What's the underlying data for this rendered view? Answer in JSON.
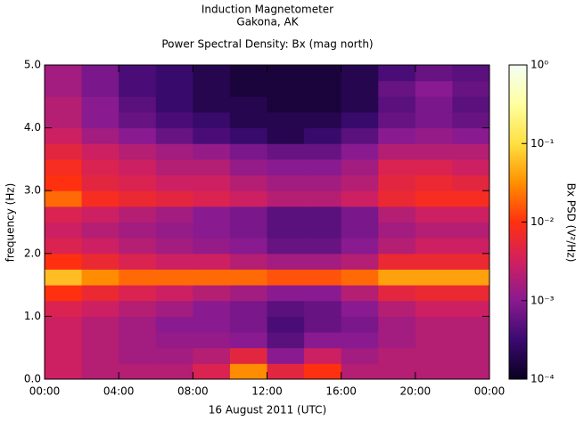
{
  "chart_data": {
    "type": "heatmap",
    "title": "Induction Magnetometer",
    "subtitle": "Gakona, AK",
    "plot_title": "Power Spectral Density: Bx (mag north)",
    "xlabel": "16 August 2011 (UTC)",
    "ylabel": "frequency (Hz)",
    "zlabel": "Bx PSD (V²/Hz)",
    "xlim": [
      0,
      24
    ],
    "xticks": [
      {
        "value": 0,
        "label": "00:00"
      },
      {
        "value": 4,
        "label": "04:00"
      },
      {
        "value": 8,
        "label": "08:00"
      },
      {
        "value": 12,
        "label": "12:00"
      },
      {
        "value": 16,
        "label": "16:00"
      },
      {
        "value": 20,
        "label": "20:00"
      },
      {
        "value": 24,
        "label": "00:00"
      }
    ],
    "ylim": [
      0,
      5
    ],
    "yticks": [
      {
        "value": 0,
        "label": "0.0"
      },
      {
        "value": 1,
        "label": "1.0"
      },
      {
        "value": 2,
        "label": "2.0"
      },
      {
        "value": 3,
        "label": "3.0"
      },
      {
        "value": 4,
        "label": "4.0"
      },
      {
        "value": 5,
        "label": "5.0"
      }
    ],
    "zlim": [
      0.0001,
      1
    ],
    "zscale": "log",
    "zticks": [
      {
        "value": 0.0001,
        "label": "10⁻⁴"
      },
      {
        "value": 0.001,
        "label": "10⁻³"
      },
      {
        "value": 0.01,
        "label": "10⁻²"
      },
      {
        "value": 0.1,
        "label": "10⁻¹"
      },
      {
        "value": 1,
        "label": "10⁰"
      }
    ],
    "colormap": [
      "#0a0020",
      "#3a0a70",
      "#8a1a90",
      "#d02060",
      "#ff3010",
      "#ff9000",
      "#ffe040",
      "#ffffa0",
      "#f4fff4"
    ],
    "x": [
      1,
      3,
      5,
      7,
      9,
      11,
      13,
      15,
      17,
      19,
      21,
      23
    ],
    "y": [
      0.125,
      0.375,
      0.625,
      0.875,
      1.125,
      1.375,
      1.625,
      1.875,
      2.125,
      2.375,
      2.625,
      2.875,
      3.125,
      3.375,
      3.625,
      3.875,
      4.125,
      4.375,
      4.625,
      4.875
    ],
    "z": [
      [
        0.003,
        0.002,
        0.002,
        0.002,
        0.004,
        0.03,
        0.005,
        0.01,
        0.002,
        0.002,
        0.002,
        0.002
      ],
      [
        0.003,
        0.002,
        0.0015,
        0.0015,
        0.002,
        0.005,
        0.001,
        0.003,
        0.0015,
        0.002,
        0.002,
        0.002
      ],
      [
        0.003,
        0.002,
        0.0015,
        0.0012,
        0.0012,
        0.001,
        0.0005,
        0.001,
        0.001,
        0.0015,
        0.002,
        0.002
      ],
      [
        0.003,
        0.002,
        0.0015,
        0.001,
        0.001,
        0.0008,
        0.0004,
        0.0006,
        0.0008,
        0.0015,
        0.002,
        0.002
      ],
      [
        0.004,
        0.003,
        0.002,
        0.0015,
        0.001,
        0.0008,
        0.0005,
        0.0006,
        0.001,
        0.002,
        0.003,
        0.003
      ],
      [
        0.01,
        0.006,
        0.004,
        0.003,
        0.002,
        0.0015,
        0.001,
        0.001,
        0.002,
        0.005,
        0.006,
        0.006
      ],
      [
        0.06,
        0.03,
        0.02,
        0.02,
        0.02,
        0.02,
        0.015,
        0.015,
        0.02,
        0.04,
        0.04,
        0.04
      ],
      [
        0.01,
        0.006,
        0.004,
        0.003,
        0.003,
        0.002,
        0.0015,
        0.0015,
        0.002,
        0.006,
        0.006,
        0.006
      ],
      [
        0.004,
        0.003,
        0.002,
        0.0015,
        0.0012,
        0.001,
        0.0006,
        0.0006,
        0.001,
        0.002,
        0.003,
        0.003
      ],
      [
        0.003,
        0.002,
        0.0015,
        0.0012,
        0.001,
        0.0008,
        0.0005,
        0.0005,
        0.0008,
        0.0015,
        0.002,
        0.002
      ],
      [
        0.004,
        0.003,
        0.002,
        0.0015,
        0.001,
        0.0008,
        0.0005,
        0.0005,
        0.0008,
        0.002,
        0.003,
        0.003
      ],
      [
        0.02,
        0.008,
        0.006,
        0.005,
        0.004,
        0.003,
        0.002,
        0.002,
        0.003,
        0.006,
        0.008,
        0.008
      ],
      [
        0.01,
        0.005,
        0.004,
        0.003,
        0.003,
        0.002,
        0.0015,
        0.0015,
        0.002,
        0.005,
        0.006,
        0.005
      ],
      [
        0.008,
        0.004,
        0.003,
        0.002,
        0.002,
        0.0012,
        0.001,
        0.001,
        0.0015,
        0.004,
        0.004,
        0.003
      ],
      [
        0.005,
        0.003,
        0.002,
        0.0015,
        0.0012,
        0.0008,
        0.0006,
        0.0006,
        0.001,
        0.002,
        0.002,
        0.002
      ],
      [
        0.003,
        0.0015,
        0.001,
        0.0006,
        0.0004,
        0.0003,
        0.0002,
        0.0003,
        0.0005,
        0.001,
        0.0012,
        0.001
      ],
      [
        0.002,
        0.001,
        0.0006,
        0.0004,
        0.0003,
        0.0002,
        0.0002,
        0.0002,
        0.0003,
        0.0006,
        0.0008,
        0.0006
      ],
      [
        0.002,
        0.001,
        0.0005,
        0.0003,
        0.0002,
        0.0002,
        0.00015,
        0.00015,
        0.0002,
        0.0005,
        0.0008,
        0.0005
      ],
      [
        0.0015,
        0.0008,
        0.0004,
        0.0003,
        0.0002,
        0.00015,
        0.00015,
        0.00015,
        0.0002,
        0.0006,
        0.001,
        0.0006
      ],
      [
        0.0015,
        0.0008,
        0.0004,
        0.0003,
        0.0002,
        0.00015,
        0.00015,
        0.00015,
        0.0002,
        0.0004,
        0.0006,
        0.0005
      ]
    ]
  }
}
